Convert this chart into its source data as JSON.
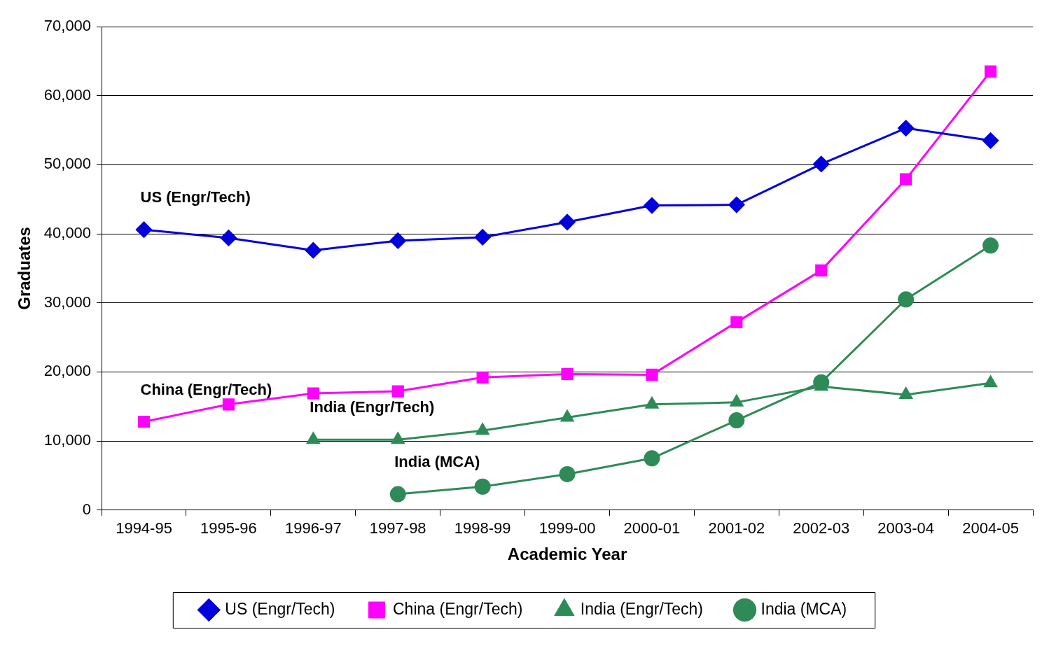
{
  "chart_data": {
    "type": "line",
    "xlabel": "Academic Year",
    "ylabel": "Graduates",
    "categories": [
      "1994-95",
      "1995-96",
      "1996-97",
      "1997-98",
      "1998-99",
      "1999-00",
      "2000-01",
      "2001-02",
      "2002-03",
      "2003-04",
      "2004-05"
    ],
    "series": [
      {
        "name": "US (Engr/Tech)",
        "color": "#0000dd",
        "marker": "diamond",
        "values": [
          40600,
          39400,
          37600,
          39000,
          39500,
          41700,
          44100,
          44200,
          50100,
          55300,
          53500
        ]
      },
      {
        "name": "China (Engr/Tech)",
        "color": "#ff00ff",
        "marker": "square",
        "values": [
          12800,
          15300,
          16900,
          17200,
          19200,
          19700,
          19600,
          27200,
          34700,
          47900,
          63500
        ]
      },
      {
        "name": "India (Engr/Tech)",
        "color": "#2e8b57",
        "marker": "triangle",
        "values": [
          null,
          null,
          10200,
          10200,
          11500,
          13400,
          15300,
          15600,
          17900,
          16700,
          18400
        ]
      },
      {
        "name": "India (MCA)",
        "color": "#2e8b57",
        "marker": "circle",
        "values": [
          null,
          null,
          null,
          2300,
          3400,
          5200,
          7500,
          13000,
          18500,
          30500,
          38300
        ]
      }
    ],
    "ylim": [
      0,
      70000
    ],
    "yticks": [
      {
        "value": 0,
        "label": "0"
      },
      {
        "value": 10000,
        "label": "10,000"
      },
      {
        "value": 20000,
        "label": "20,000"
      },
      {
        "value": 30000,
        "label": "30,000"
      },
      {
        "value": 40000,
        "label": "40,000"
      },
      {
        "value": 50000,
        "label": "50,000"
      },
      {
        "value": 60000,
        "label": "60,000"
      },
      {
        "value": 70000,
        "label": "70,000"
      }
    ],
    "grid": "y",
    "legend": "bottom",
    "line_style": "solid"
  }
}
